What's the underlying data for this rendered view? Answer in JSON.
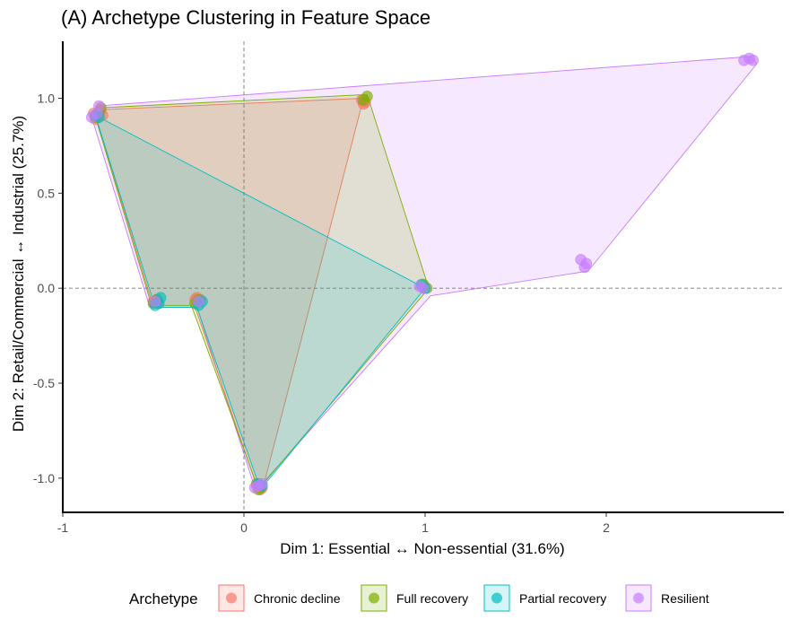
{
  "chart_data": {
    "type": "scatter",
    "title": "(A) Archetype Clustering in Feature Space",
    "xlabel": "Dim 1: Essential ↔ Non-essential (31.6%)",
    "ylabel": "Dim 2: Retail/Commercial ↔ Industrial (25.7%)",
    "xlim": [
      -1.0,
      2.98
    ],
    "ylim": [
      -1.18,
      1.3
    ],
    "x_ticks": [
      -1,
      0,
      1,
      2
    ],
    "x_tick_labels": [
      "-1",
      "0",
      "1",
      "2"
    ],
    "y_ticks": [
      -1.0,
      -0.5,
      0.0,
      0.5,
      1.0
    ],
    "y_tick_labels": [
      "-1.0",
      "-0.5",
      "0.0",
      "0.5",
      "1.0"
    ],
    "reference_lines": {
      "x": 0,
      "y": 0
    },
    "grid": false,
    "legend": {
      "title": "Archetype",
      "position": "bottom",
      "entries": [
        "Chronic decline",
        "Full recovery",
        "Partial recovery",
        "Resilient"
      ]
    },
    "series": [
      {
        "name": "Chronic decline",
        "color": "#F8766D",
        "hull": [
          [
            -0.82,
            0.91
          ],
          [
            -0.79,
            0.94
          ],
          [
            0.66,
            1.0
          ],
          [
            0.1,
            -1.07
          ],
          [
            0.07,
            -1.04
          ],
          [
            -0.27,
            -0.1
          ],
          [
            -0.5,
            -0.1
          ]
        ],
        "points": [
          [
            -0.83,
            0.92
          ],
          [
            -0.81,
            0.9
          ],
          [
            -0.8,
            0.93
          ],
          [
            -0.78,
            0.91
          ],
          [
            -0.82,
            0.89
          ],
          [
            -0.79,
            0.94
          ],
          [
            0.65,
            0.99
          ],
          [
            0.66,
            0.97
          ],
          [
            0.67,
            0.98
          ],
          [
            -0.48,
            -0.06
          ],
          [
            -0.5,
            -0.07
          ],
          [
            -0.47,
            -0.08
          ],
          [
            -0.26,
            -0.05
          ],
          [
            -0.24,
            -0.06
          ],
          [
            -0.25,
            -0.07
          ],
          [
            -0.27,
            -0.06
          ],
          [
            0.07,
            -1.04
          ],
          [
            0.09,
            -1.06
          ],
          [
            0.1,
            -1.05
          ]
        ]
      },
      {
        "name": "Full recovery",
        "color": "#7CAE00",
        "hull": [
          [
            -0.82,
            0.9
          ],
          [
            -0.79,
            0.95
          ],
          [
            0.68,
            1.02
          ],
          [
            1.02,
            0.0
          ],
          [
            0.08,
            -1.06
          ],
          [
            -0.29,
            -0.09
          ],
          [
            -0.51,
            -0.09
          ]
        ],
        "points": [
          [
            -0.82,
            0.9
          ],
          [
            -0.8,
            0.92
          ],
          [
            -0.79,
            0.95
          ],
          [
            0.68,
            1.01
          ],
          [
            0.66,
            0.99
          ],
          [
            1.01,
            0.0
          ],
          [
            0.99,
            0.02
          ],
          [
            -0.5,
            -0.08
          ],
          [
            -0.48,
            -0.06
          ],
          [
            -0.27,
            -0.08
          ],
          [
            -0.25,
            -0.06
          ],
          [
            0.07,
            -1.03
          ],
          [
            0.09,
            -1.05
          ],
          [
            0.08,
            -1.06
          ]
        ]
      },
      {
        "name": "Partial recovery",
        "color": "#00BFC4",
        "hull": [
          [
            -0.82,
            0.91
          ],
          [
            1.0,
            0.0
          ],
          [
            0.1,
            -1.05
          ],
          [
            0.08,
            -1.03
          ],
          [
            -0.26,
            -0.1
          ],
          [
            -0.49,
            -0.1
          ]
        ],
        "points": [
          [
            -0.82,
            0.91
          ],
          [
            -0.8,
            0.9
          ],
          [
            0.98,
            0.02
          ],
          [
            1.0,
            0.0
          ],
          [
            -0.46,
            -0.05
          ],
          [
            -0.47,
            -0.08
          ],
          [
            -0.49,
            -0.09
          ],
          [
            -0.23,
            -0.07
          ],
          [
            -0.25,
            -0.09
          ],
          [
            0.08,
            -1.03
          ],
          [
            0.1,
            -1.04
          ]
        ]
      },
      {
        "name": "Resilient",
        "color": "#C77CFF",
        "hull": [
          [
            -0.84,
            0.9
          ],
          [
            -0.8,
            0.96
          ],
          [
            2.8,
            1.22
          ],
          [
            2.83,
            1.18
          ],
          [
            1.9,
            0.09
          ],
          [
            1.03,
            -0.04
          ],
          [
            0.1,
            -1.03
          ],
          [
            0.06,
            -1.05
          ],
          [
            -0.26,
            -0.1
          ],
          [
            -0.52,
            -0.1
          ]
        ],
        "points": [
          [
            -0.84,
            0.9
          ],
          [
            -0.81,
            0.92
          ],
          [
            -0.8,
            0.96
          ],
          [
            2.76,
            1.2
          ],
          [
            2.79,
            1.21
          ],
          [
            2.81,
            1.2
          ],
          [
            1.86,
            0.15
          ],
          [
            1.88,
            0.11
          ],
          [
            1.89,
            0.13
          ],
          [
            0.97,
            0.01
          ],
          [
            0.99,
            0.0
          ],
          [
            -0.49,
            -0.07
          ],
          [
            -0.25,
            -0.07
          ],
          [
            0.08,
            -1.04
          ],
          [
            0.1,
            -1.03
          ],
          [
            0.06,
            -1.05
          ]
        ]
      }
    ]
  }
}
